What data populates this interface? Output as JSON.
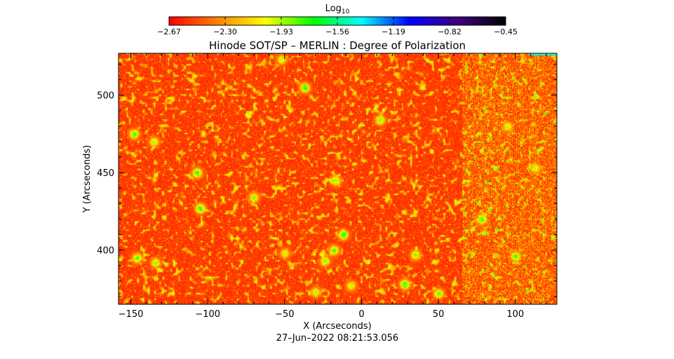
{
  "chart_data": {
    "type": "heatmap",
    "title": "Hinode SOT/SP – MERLIN : Degree of Polarization",
    "xlabel": "X (Arcseconds)",
    "ylabel": "Y (Arcseconds)",
    "xlim": [
      -158,
      127
    ],
    "ylim": [
      365,
      527
    ],
    "x_ticks": [
      -150,
      -100,
      -50,
      0,
      50,
      100
    ],
    "x_tick_labels": [
      "−150",
      "−100",
      "−50",
      "0",
      "50",
      "100"
    ],
    "y_ticks": [
      400,
      450,
      500
    ],
    "y_tick_labels": [
      "400",
      "450",
      "500"
    ],
    "colorbar": {
      "label": "Log",
      "label_subscript": "10",
      "min": -2.67,
      "max": -0.45,
      "tick_values": [
        -2.67,
        -2.3,
        -1.93,
        -1.56,
        -1.19,
        -0.82,
        -0.45
      ],
      "tick_labels": [
        "−2.67",
        "−2.30",
        "−1.93",
        "−1.56",
        "−1.19",
        "−0.82",
        "−0.45"
      ],
      "colors": [
        "#ff0000",
        "#ff8000",
        "#ffff00",
        "#00ff00",
        "#00ffff",
        "#0000ff",
        "#400080",
        "#000000"
      ]
    },
    "field_mean_log10": -2.55,
    "noisy_region_x_start": 65,
    "patches": [
      {
        "x": -148,
        "y": 475,
        "value": -1.65
      },
      {
        "x": -135,
        "y": 470,
        "value": -1.8
      },
      {
        "x": -107,
        "y": 450,
        "value": -1.6
      },
      {
        "x": -105,
        "y": 427,
        "value": -1.55
      },
      {
        "x": -70,
        "y": 434,
        "value": -1.75
      },
      {
        "x": -37,
        "y": 505,
        "value": -1.6
      },
      {
        "x": -17,
        "y": 445,
        "value": -1.7
      },
      {
        "x": -12,
        "y": 410,
        "value": -1.5
      },
      {
        "x": -18,
        "y": 400,
        "value": -1.65
      },
      {
        "x": -24,
        "y": 393,
        "value": -1.75
      },
      {
        "x": 12,
        "y": 484,
        "value": -1.7
      },
      {
        "x": 28,
        "y": 378,
        "value": -1.55
      },
      {
        "x": 35,
        "y": 397,
        "value": -1.75
      },
      {
        "x": 50,
        "y": 372,
        "value": -1.7
      },
      {
        "x": 78,
        "y": 420,
        "value": -1.6
      },
      {
        "x": 100,
        "y": 396,
        "value": -1.65
      },
      {
        "x": -146,
        "y": 395,
        "value": -1.7
      },
      {
        "x": -134,
        "y": 392,
        "value": -1.8
      },
      {
        "x": -30,
        "y": 373,
        "value": -1.85
      },
      {
        "x": -50,
        "y": 398,
        "value": -1.9
      },
      {
        "x": 95,
        "y": 480,
        "value": -1.9
      },
      {
        "x": 113,
        "y": 453,
        "value": -1.85
      },
      {
        "x": -7,
        "y": 377,
        "value": -1.85
      },
      {
        "x": -52,
        "y": 523,
        "value": -1.85
      }
    ],
    "timestamp": "27–Jun–2022 08:21:53.056"
  }
}
